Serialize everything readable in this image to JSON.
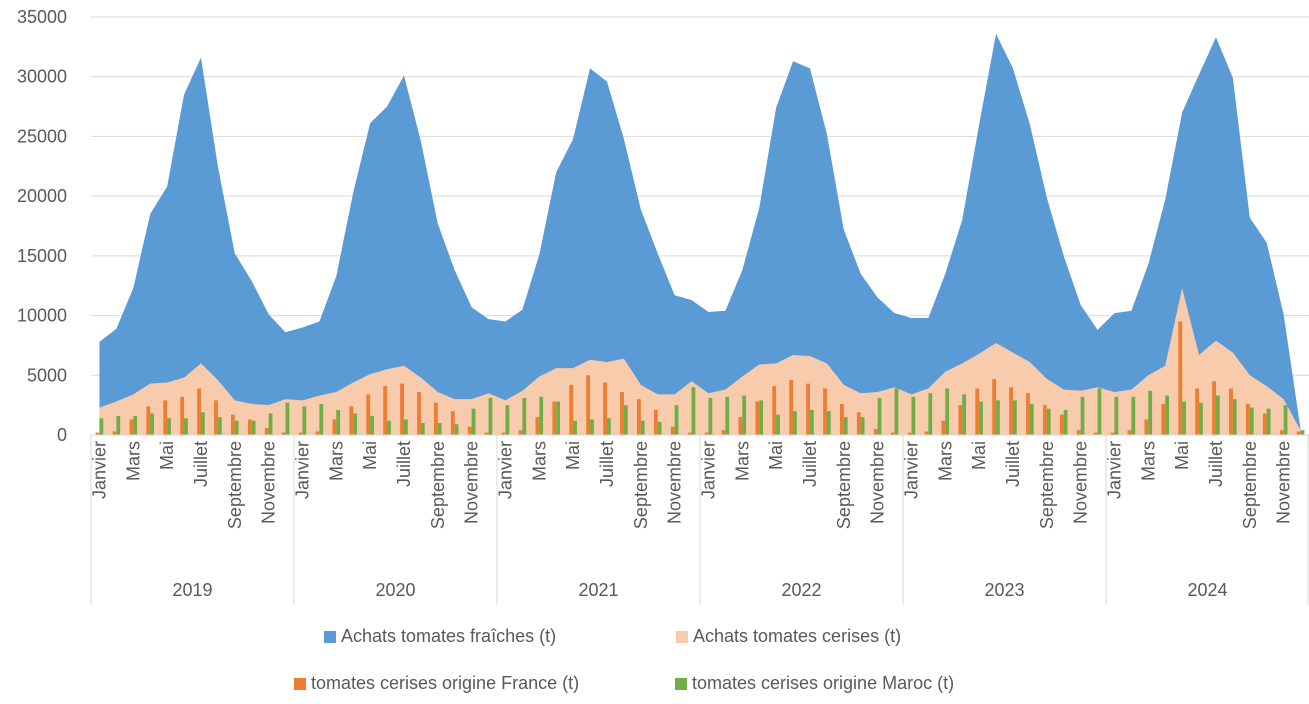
{
  "chart_data": {
    "type": "area",
    "ylim": [
      0,
      35000
    ],
    "yticks": [
      0,
      5000,
      10000,
      15000,
      20000,
      25000,
      30000,
      35000
    ],
    "years": [
      "2019",
      "2020",
      "2021",
      "2022",
      "2023",
      "2024"
    ],
    "month_labels": [
      "Janvier",
      "",
      "Mars",
      "",
      "Mai",
      "",
      "Juillet",
      "",
      "Septembre",
      "",
      "Novembre",
      ""
    ],
    "grid": "horizontal",
    "legend_position": "bottom",
    "series": [
      {
        "name": "Achats tomates fraîches (t)",
        "kind": "area",
        "color": "#5B9BD5",
        "values": [
          7800,
          8900,
          12300,
          18500,
          20800,
          28500,
          31600,
          22500,
          15200,
          12900,
          10100,
          8600,
          9000,
          9500,
          13300,
          20300,
          26100,
          27500,
          30100,
          24600,
          17700,
          13800,
          10700,
          9700,
          9500,
          10500,
          15100,
          22000,
          24800,
          30700,
          29600,
          24800,
          18900,
          15200,
          11700,
          11300,
          10300,
          10400,
          13800,
          19000,
          27400,
          31300,
          30700,
          25200,
          17200,
          13500,
          11500,
          10200,
          9800,
          9800,
          13500,
          18000,
          26000,
          33600,
          30700,
          26000,
          19900,
          15000,
          10900,
          8800,
          10200,
          10400,
          14300,
          19700,
          27000,
          30200,
          33300,
          29900,
          18200,
          16100,
          10100,
          500
        ]
      },
      {
        "name": "Achats tomates cerises (t)",
        "kind": "area",
        "color": "#F8CBAD",
        "values": [
          2300,
          2800,
          3400,
          4300,
          4400,
          4800,
          6000,
          4600,
          2900,
          2600,
          2500,
          3000,
          2900,
          3300,
          3600,
          4400,
          5100,
          5500,
          5800,
          4800,
          3600,
          3000,
          3000,
          3500,
          2900,
          3700,
          4900,
          5600,
          5600,
          6300,
          6100,
          6400,
          4200,
          3400,
          3400,
          4500,
          3500,
          3800,
          4900,
          5900,
          6000,
          6700,
          6600,
          6000,
          4200,
          3500,
          3600,
          4000,
          3400,
          3900,
          5300,
          6000,
          6800,
          7700,
          6900,
          6100,
          4700,
          3800,
          3700,
          4000,
          3600,
          3800,
          5000,
          5800,
          12300,
          6700,
          7900,
          6900,
          5000,
          4100,
          3000,
          400
        ]
      },
      {
        "name": "tomates cerises origine France (t)",
        "kind": "bar",
        "color": "#ED7D31",
        "values": [
          200,
          300,
          1300,
          2400,
          2900,
          3200,
          3900,
          2900,
          1700,
          1300,
          600,
          200,
          200,
          300,
          1300,
          2400,
          3400,
          4100,
          4300,
          3600,
          2700,
          2000,
          700,
          200,
          200,
          400,
          1500,
          2800,
          4200,
          5000,
          4400,
          3600,
          3000,
          2100,
          700,
          200,
          200,
          400,
          1500,
          2800,
          4100,
          4600,
          4300,
          3900,
          2600,
          1900,
          500,
          200,
          200,
          300,
          1200,
          2500,
          3900,
          4700,
          4000,
          3500,
          2500,
          1700,
          400,
          200,
          200,
          400,
          1300,
          2600,
          9500,
          3900,
          4500,
          3900,
          2600,
          1800,
          400,
          300
        ]
      },
      {
        "name": "tomates cerises origine Maroc (t)",
        "kind": "bar",
        "color": "#70AD47",
        "values": [
          1400,
          1600,
          1600,
          1800,
          1400,
          1400,
          1900,
          1500,
          1200,
          1200,
          1800,
          2700,
          2400,
          2600,
          2100,
          1800,
          1600,
          1200,
          1300,
          1000,
          1000,
          900,
          2200,
          3100,
          2500,
          3100,
          3200,
          2800,
          1200,
          1300,
          1400,
          2500,
          1200,
          1100,
          2500,
          4000,
          3100,
          3200,
          3300,
          2900,
          1700,
          2000,
          2100,
          2000,
          1500,
          1500,
          3100,
          3900,
          3200,
          3500,
          3900,
          3400,
          2800,
          2900,
          2900,
          2600,
          2200,
          2100,
          3200,
          3900,
          3200,
          3200,
          3700,
          3300,
          2800,
          2700,
          3300,
          3000,
          2300,
          2200,
          2500,
          400
        ]
      }
    ]
  }
}
